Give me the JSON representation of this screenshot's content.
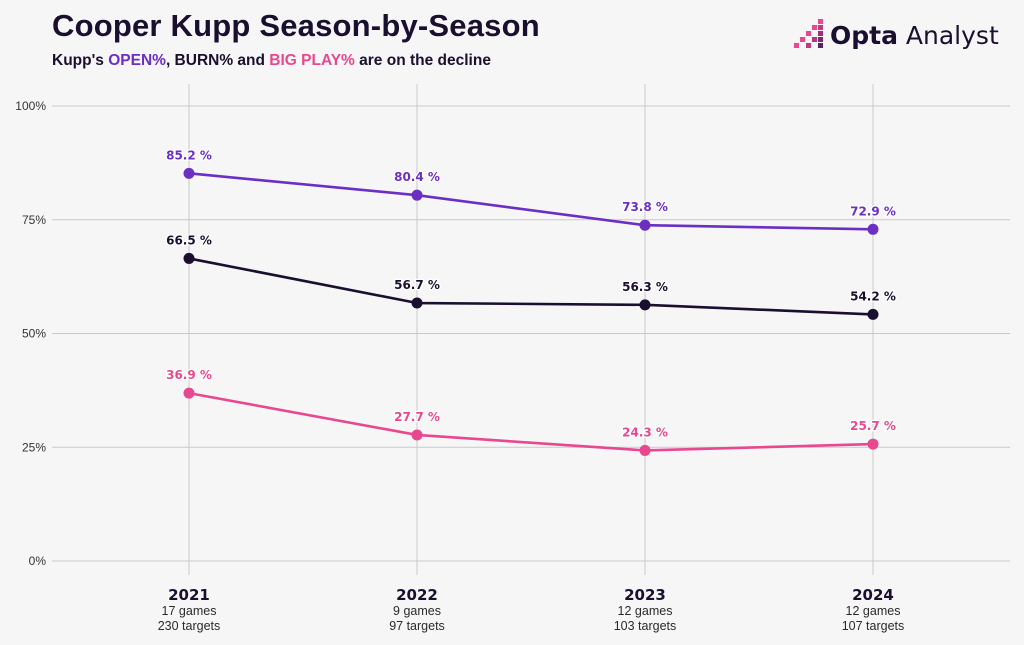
{
  "header": {
    "title": "Cooper Kupp Season-by-Season",
    "subtitle_prefix": "Kupp's ",
    "subtitle_open": "OPEN%",
    "subtitle_mid": ", BURN% and ",
    "subtitle_big": "BIG PLAY%",
    "subtitle_suffix": " are on the decline"
  },
  "logo": {
    "brand": "Opta",
    "product": " Analyst"
  },
  "colors": {
    "open": "#6b2fc4",
    "burn": "#1a0f2e",
    "big_play": "#e8488f",
    "grid": "#c9c9c9"
  },
  "chart_data": {
    "type": "line",
    "title": "Cooper Kupp Season-by-Season",
    "categories": [
      "2021",
      "2022",
      "2023",
      "2024"
    ],
    "games": [
      "17 games",
      "9 games",
      "12 games",
      "12 games"
    ],
    "targets": [
      "230 targets",
      "97 targets",
      "103 targets",
      "107 targets"
    ],
    "ylim": [
      0,
      100
    ],
    "yticks": [
      0,
      25,
      50,
      75,
      100
    ],
    "ytick_labels": [
      "0%",
      "25%",
      "50%",
      "75%",
      "100%"
    ],
    "series": [
      {
        "name": "OPEN%",
        "color": "#6b2fc4",
        "values": [
          85.2,
          80.4,
          73.8,
          72.9
        ],
        "labels": [
          "85.2 %",
          "80.4 %",
          "73.8 %",
          "72.9 %"
        ]
      },
      {
        "name": "BURN%",
        "color": "#1a0f2e",
        "values": [
          66.5,
          56.7,
          56.3,
          54.2
        ],
        "labels": [
          "66.5 %",
          "56.7 %",
          "56.3 %",
          "54.2 %"
        ]
      },
      {
        "name": "BIG PLAY%",
        "color": "#e8488f",
        "values": [
          36.9,
          27.7,
          24.3,
          25.7
        ],
        "labels": [
          "36.9 %",
          "27.7 %",
          "24.3 %",
          "25.7 %"
        ]
      }
    ]
  }
}
